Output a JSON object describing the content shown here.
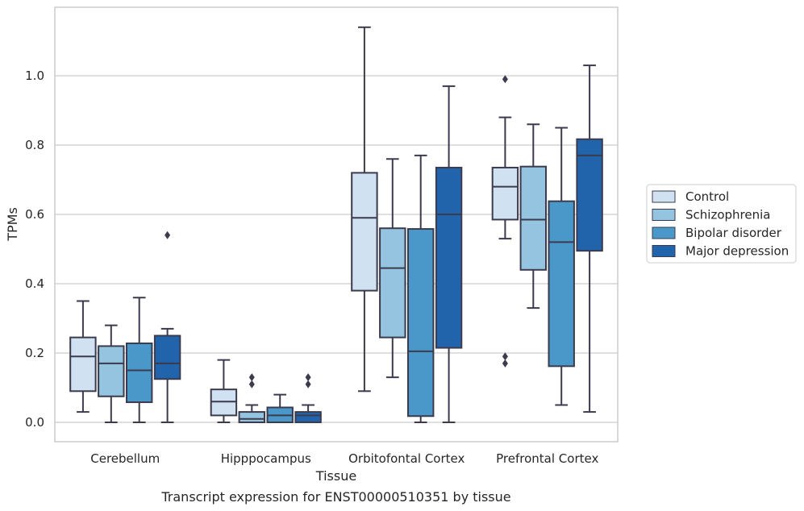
{
  "chart_data": {
    "type": "box",
    "title": "",
    "xlabel": "Tissue",
    "ylabel": "TPMs",
    "caption": "Transcript expression for ENST00000510351 by tissue",
    "ylim": [
      -0.055,
      1.2
    ],
    "yticks": [
      0.0,
      0.2,
      0.4,
      0.6,
      0.8,
      1.0
    ],
    "ytick_labels": [
      "0.0",
      "0.2",
      "0.4",
      "0.6",
      "0.8",
      "1.0"
    ],
    "grid": "horizontal",
    "legend_position": "right",
    "categories": [
      "Cerebellum",
      "Hipppocampus",
      "Orbitofontal Cortex",
      "Prefrontal Cortex"
    ],
    "series": [
      {
        "name": "Control",
        "color": "#d0e1f2",
        "boxes": [
          {
            "whisker_low": 0.03,
            "q1": 0.09,
            "median": 0.19,
            "q3": 0.245,
            "whisker_high": 0.35,
            "outliers": []
          },
          {
            "whisker_low": 0.0,
            "q1": 0.02,
            "median": 0.06,
            "q3": 0.095,
            "whisker_high": 0.18,
            "outliers": []
          },
          {
            "whisker_low": 0.09,
            "q1": 0.38,
            "median": 0.59,
            "q3": 0.72,
            "whisker_high": 1.14,
            "outliers": []
          },
          {
            "whisker_low": 0.53,
            "q1": 0.585,
            "median": 0.68,
            "q3": 0.735,
            "whisker_high": 0.88,
            "outliers": [
              0.99,
              0.19,
              0.17
            ]
          }
        ]
      },
      {
        "name": "Schizophrenia",
        "color": "#94c4df",
        "boxes": [
          {
            "whisker_low": 0.0,
            "q1": 0.075,
            "median": 0.17,
            "q3": 0.22,
            "whisker_high": 0.28,
            "outliers": []
          },
          {
            "whisker_low": 0.0,
            "q1": 0.0,
            "median": 0.01,
            "q3": 0.03,
            "whisker_high": 0.05,
            "outliers": [
              0.13,
              0.11
            ]
          },
          {
            "whisker_low": 0.13,
            "q1": 0.245,
            "median": 0.445,
            "q3": 0.56,
            "whisker_high": 0.76,
            "outliers": []
          },
          {
            "whisker_low": 0.33,
            "q1": 0.44,
            "median": 0.585,
            "q3": 0.738,
            "whisker_high": 0.86,
            "outliers": []
          }
        ]
      },
      {
        "name": "Bipolar disorder",
        "color": "#4a98c9",
        "boxes": [
          {
            "whisker_low": 0.0,
            "q1": 0.058,
            "median": 0.15,
            "q3": 0.228,
            "whisker_high": 0.36,
            "outliers": []
          },
          {
            "whisker_low": 0.0,
            "q1": 0.0,
            "median": 0.02,
            "q3": 0.043,
            "whisker_high": 0.08,
            "outliers": []
          },
          {
            "whisker_low": 0.0,
            "q1": 0.018,
            "median": 0.205,
            "q3": 0.558,
            "whisker_high": 0.77,
            "outliers": []
          },
          {
            "whisker_low": 0.05,
            "q1": 0.162,
            "median": 0.52,
            "q3": 0.638,
            "whisker_high": 0.85,
            "outliers": []
          }
        ]
      },
      {
        "name": "Major depression",
        "color": "#2164ab",
        "boxes": [
          {
            "whisker_low": 0.0,
            "q1": 0.125,
            "median": 0.17,
            "q3": 0.25,
            "whisker_high": 0.27,
            "outliers": [
              0.54
            ]
          },
          {
            "whisker_low": 0.0,
            "q1": 0.0,
            "median": 0.02,
            "q3": 0.03,
            "whisker_high": 0.05,
            "outliers": [
              0.13,
              0.11
            ]
          },
          {
            "whisker_low": 0.0,
            "q1": 0.215,
            "median": 0.6,
            "q3": 0.735,
            "whisker_high": 0.97,
            "outliers": []
          },
          {
            "whisker_low": 0.03,
            "q1": 0.495,
            "median": 0.77,
            "q3": 0.817,
            "whisker_high": 1.03,
            "outliers": []
          }
        ]
      }
    ]
  }
}
